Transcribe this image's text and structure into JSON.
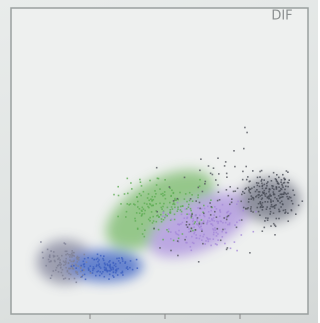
{
  "label": "DIF"
}
